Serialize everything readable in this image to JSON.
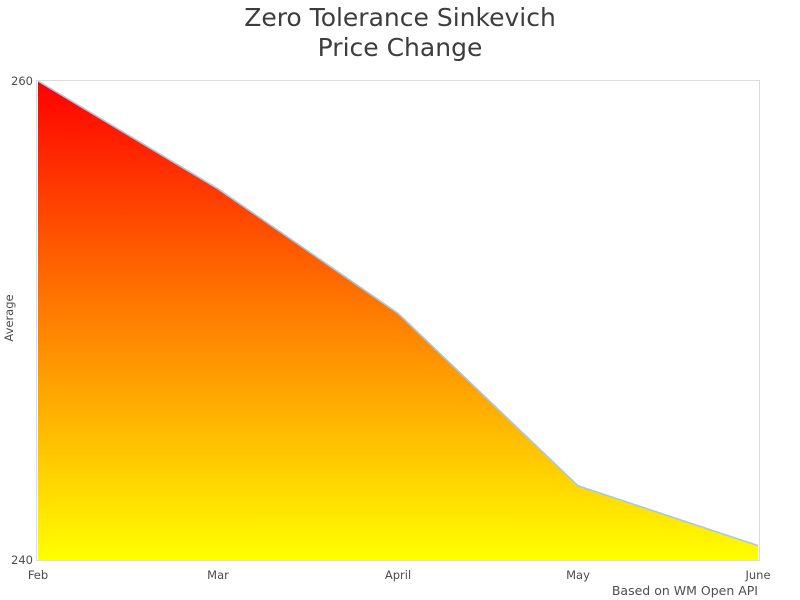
{
  "title_lines": [
    "Zero Tolerance Sinkevich",
    "Price Change"
  ],
  "caption": "Based on WM Open API",
  "colors": {
    "title_text": "#3d3d3d",
    "tick_text": "#4d4d4d",
    "caption_text": "#4f4f4f",
    "plot_border": "#dcdcdc",
    "background": "#ffffff",
    "area_gradient_top": "#ff0000",
    "area_gradient_bottom": "#ffff00",
    "outline": "#a6c8e8"
  },
  "chart_data": {
    "type": "area",
    "title": "Zero Tolerance Sinkevich Price Change",
    "categories": [
      "Feb",
      "Mar",
      "April",
      "May",
      "June"
    ],
    "series": [
      {
        "name": "Average",
        "values": [
          260,
          255.5,
          250.3,
          243.1,
          240.6
        ]
      }
    ],
    "xlabel": "",
    "ylabel": "Average",
    "ylim": [
      240,
      260
    ],
    "yticks": [
      240,
      260
    ],
    "grid": false,
    "legend": false,
    "fill": "vertical gradient red to yellow",
    "outline_color": "#a6c8e8",
    "caption": "Based on WM Open API"
  }
}
